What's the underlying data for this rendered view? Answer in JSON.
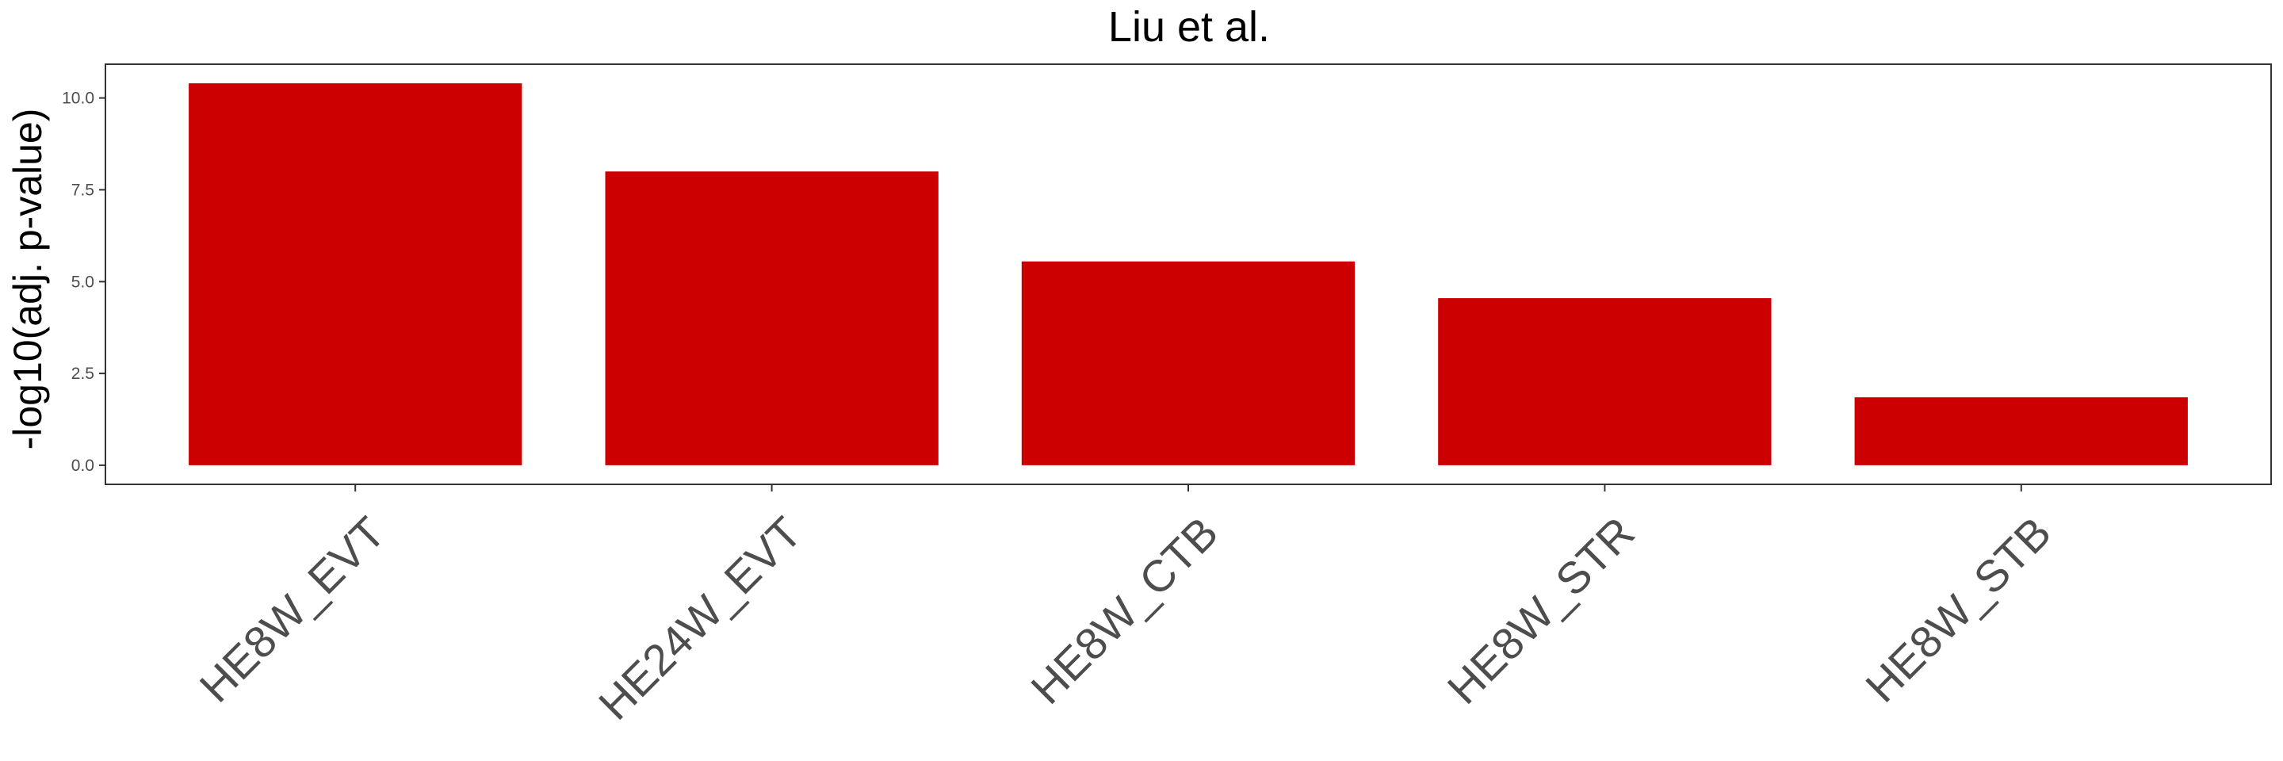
{
  "chart_data": {
    "type": "bar",
    "title": "Liu et al.",
    "xlabel": "",
    "ylabel": "-log10(adj. p-value)",
    "categories": [
      "HE8W_EVT",
      "HE24W_EVT",
      "HE8W_CTB",
      "HE8W_STR",
      "HE8W_STB"
    ],
    "values": [
      10.4,
      8.0,
      5.55,
      4.55,
      1.85
    ],
    "ylim": [
      -0.52,
      10.92
    ],
    "yticks": [
      0.0,
      2.5,
      5.0,
      7.5,
      10.0
    ],
    "ytick_labels": [
      "0.0",
      "2.5",
      "5.0",
      "7.5",
      "10.0"
    ],
    "bar_color": "#cc0000",
    "grid": false,
    "legend": "none"
  }
}
